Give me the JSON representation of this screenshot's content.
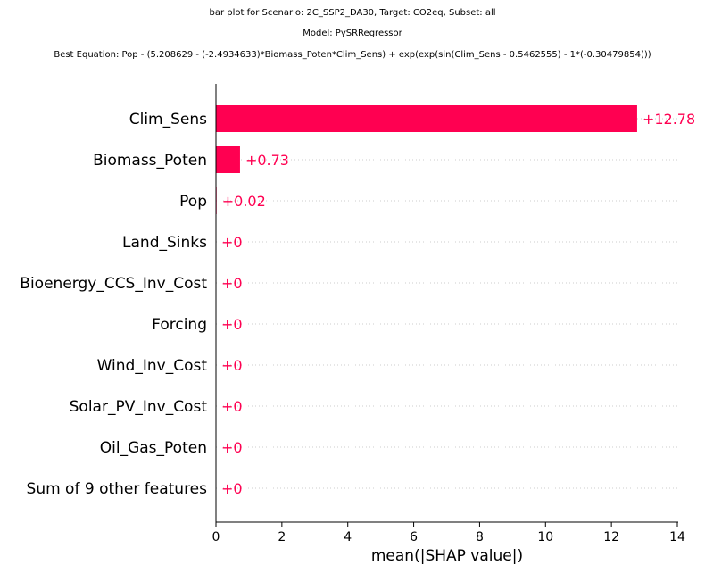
{
  "titles": {
    "line1": "bar plot for Scenario: 2C_SSP2_DA30, Target: CO2eq, Subset: all",
    "line2": "Model: PySRRegressor",
    "line3": "Best Equation: Pop - (5.208629 - (-2.4934633)*Biomass_Poten*Clim_Sens) + exp(exp(sin(Clim_Sens - 0.5462555) - 1*(-0.30479854)))"
  },
  "colors": {
    "bar": "#ff0051",
    "text_value": "#ff0051",
    "axis": "#000000",
    "grid": "#cccccc"
  },
  "chart_data": {
    "type": "bar",
    "orientation": "horizontal",
    "categories": [
      "Clim_Sens",
      "Biomass_Poten",
      "Pop",
      "Land_Sinks",
      "Bioenergy_CCS_Inv_Cost",
      "Forcing",
      "Wind_Inv_Cost",
      "Solar_PV_Inv_Cost",
      "Oil_Gas_Poten",
      "Sum of 9 other features"
    ],
    "values": [
      12.78,
      0.73,
      0.02,
      0,
      0,
      0,
      0,
      0,
      0,
      0
    ],
    "value_labels": [
      "+12.78",
      "+0.73",
      "+0.02",
      "+0",
      "+0",
      "+0",
      "+0",
      "+0",
      "+0",
      "+0"
    ],
    "xlabel": "mean(|SHAP value|)",
    "xlim": [
      0,
      14
    ],
    "xticks": [
      0,
      2,
      4,
      6,
      8,
      10,
      12,
      14
    ],
    "xtick_labels": [
      "0",
      "2",
      "4",
      "6",
      "8",
      "10",
      "12",
      "14"
    ]
  }
}
